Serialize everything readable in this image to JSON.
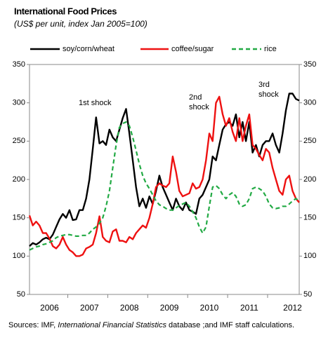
{
  "chart_data": {
    "type": "line",
    "title": "International Food Prices",
    "subtitle": "(US$ per unit, index Jan 2005=100)",
    "source": {
      "prefix": "Sources: IMF, ",
      "italic": "International Financial Statistics",
      "suffix": " database ;and IMF staff calculations."
    },
    "annotations": [
      [
        "1st shock"
      ],
      [
        "2nd",
        "shock"
      ],
      [
        "3rd",
        "shock"
      ]
    ],
    "categories": [
      null,
      null,
      null,
      null,
      null,
      null,
      "2006",
      null,
      null,
      null,
      null,
      null,
      null,
      null,
      null,
      null,
      null,
      null,
      "2007",
      null,
      null,
      null,
      null,
      null,
      null,
      null,
      null,
      null,
      null,
      null,
      "2008",
      null,
      null,
      null,
      null,
      null,
      null,
      null,
      null,
      null,
      null,
      null,
      "2009",
      null,
      null,
      null,
      null,
      null,
      null,
      null,
      null,
      null,
      null,
      null,
      "2010",
      null,
      null,
      null,
      null,
      null,
      null,
      null,
      null,
      null,
      null,
      null,
      "2011",
      null,
      null,
      null,
      null,
      null,
      null,
      null,
      null,
      null,
      null,
      null,
      null,
      "2012",
      null,
      null
    ],
    "series": [
      {
        "name": "soy/corn/wheat",
        "color": "#000000",
        "dashed": false,
        "values": [
          113,
          117,
          115,
          118,
          122,
          124,
          122,
          128,
          138,
          148,
          155,
          150,
          160,
          147,
          148,
          160,
          160,
          175,
          200,
          240,
          281,
          247,
          250,
          245,
          265,
          255,
          250,
          265,
          280,
          292,
          260,
          225,
          190,
          165,
          175,
          163,
          178,
          168,
          185,
          205,
          190,
          180,
          170,
          160,
          175,
          165,
          160,
          170,
          160,
          158,
          155,
          175,
          180,
          190,
          200,
          230,
          225,
          245,
          265,
          272,
          275,
          270,
          285,
          255,
          275,
          250,
          275,
          235,
          245,
          230,
          245,
          250,
          250,
          260,
          245,
          235,
          260,
          290,
          312,
          312,
          305,
          303
        ]
      },
      {
        "name": "coffee/sugar",
        "color": "#ee1111",
        "dashed": false,
        "values": [
          153,
          140,
          145,
          140,
          130,
          130,
          123,
          113,
          110,
          115,
          125,
          115,
          108,
          105,
          100,
          100,
          102,
          110,
          112,
          115,
          130,
          152,
          125,
          120,
          118,
          132,
          135,
          120,
          120,
          118,
          125,
          122,
          130,
          135,
          140,
          137,
          150,
          168,
          190,
          195,
          192,
          190,
          195,
          230,
          210,
          185,
          178,
          180,
          182,
          195,
          188,
          190,
          200,
          225,
          260,
          250,
          300,
          308,
          285,
          270,
          280,
          262,
          250,
          280,
          250,
          270,
          285,
          245,
          240,
          232,
          225,
          240,
          235,
          215,
          200,
          185,
          180,
          200,
          205,
          185,
          175,
          170
        ]
      },
      {
        "name": "rice",
        "color": "#22aa44",
        "dashed": true,
        "values": [
          108,
          110,
          112,
          113,
          115,
          116,
          118,
          120,
          124,
          126,
          127,
          128,
          128,
          127,
          126,
          126,
          127,
          127,
          130,
          135,
          138,
          143,
          150,
          165,
          185,
          215,
          245,
          268,
          273,
          275,
          270,
          255,
          238,
          220,
          205,
          195,
          188,
          180,
          172,
          167,
          165,
          162,
          160,
          160,
          163,
          166,
          168,
          170,
          165,
          158,
          150,
          138,
          130,
          138,
          165,
          190,
          192,
          188,
          180,
          175,
          180,
          183,
          178,
          168,
          165,
          167,
          175,
          188,
          190,
          188,
          185,
          178,
          168,
          163,
          162,
          163,
          165,
          165,
          168,
          172,
          175,
          172
        ]
      }
    ],
    "ylim": [
      50,
      350
    ],
    "yticks": [
      50,
      100,
      150,
      200,
      250,
      300,
      350
    ],
    "y2lim": [
      50,
      350
    ],
    "y2ticks": [
      50,
      100,
      150,
      200,
      250,
      300,
      350
    ],
    "grid": false
  }
}
